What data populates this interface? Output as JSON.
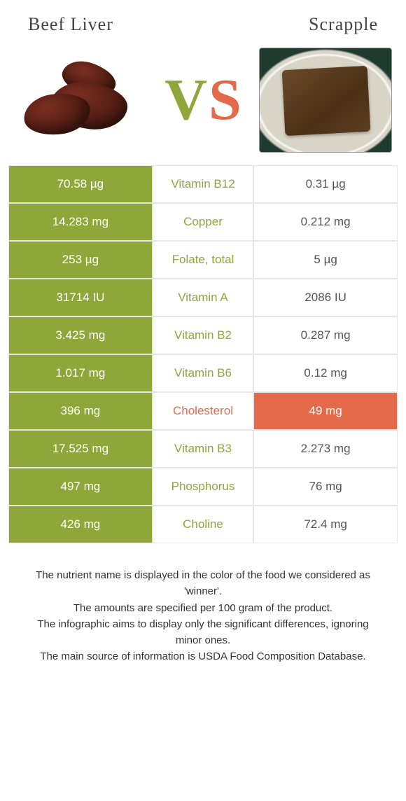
{
  "colors": {
    "left": "#8fa63a",
    "right": "#e36a4a",
    "neutral_text": "#555"
  },
  "food_left": {
    "name": "Beef Liver"
  },
  "food_right": {
    "name": "Scrapple"
  },
  "vs": {
    "v": "V",
    "s": "S"
  },
  "rows": [
    {
      "nutrient": "Vitamin B12",
      "left": "70.58 µg",
      "right": "0.31 µg",
      "winner": "left"
    },
    {
      "nutrient": "Copper",
      "left": "14.283 mg",
      "right": "0.212 mg",
      "winner": "left"
    },
    {
      "nutrient": "Folate, total",
      "left": "253 µg",
      "right": "5 µg",
      "winner": "left"
    },
    {
      "nutrient": "Vitamin A",
      "left": "31714 IU",
      "right": "2086 IU",
      "winner": "left"
    },
    {
      "nutrient": "Vitamin B2",
      "left": "3.425 mg",
      "right": "0.287 mg",
      "winner": "left"
    },
    {
      "nutrient": "Vitamin B6",
      "left": "1.017 mg",
      "right": "0.12 mg",
      "winner": "left"
    },
    {
      "nutrient": "Cholesterol",
      "left": "396 mg",
      "right": "49 mg",
      "winner": "right"
    },
    {
      "nutrient": "Vitamin B3",
      "left": "17.525 mg",
      "right": "2.273 mg",
      "winner": "left"
    },
    {
      "nutrient": "Phosphorus",
      "left": "497 mg",
      "right": "76 mg",
      "winner": "left"
    },
    {
      "nutrient": "Choline",
      "left": "426 mg",
      "right": "72.4 mg",
      "winner": "left"
    }
  ],
  "footer": {
    "l1": "The nutrient name is displayed in the color of the food we considered as 'winner'.",
    "l2": "The amounts are specified per 100 gram of the product.",
    "l3": "The infographic aims to display only the significant differences, ignoring minor ones.",
    "l4": "The main source of information is USDA Food Composition Database."
  }
}
